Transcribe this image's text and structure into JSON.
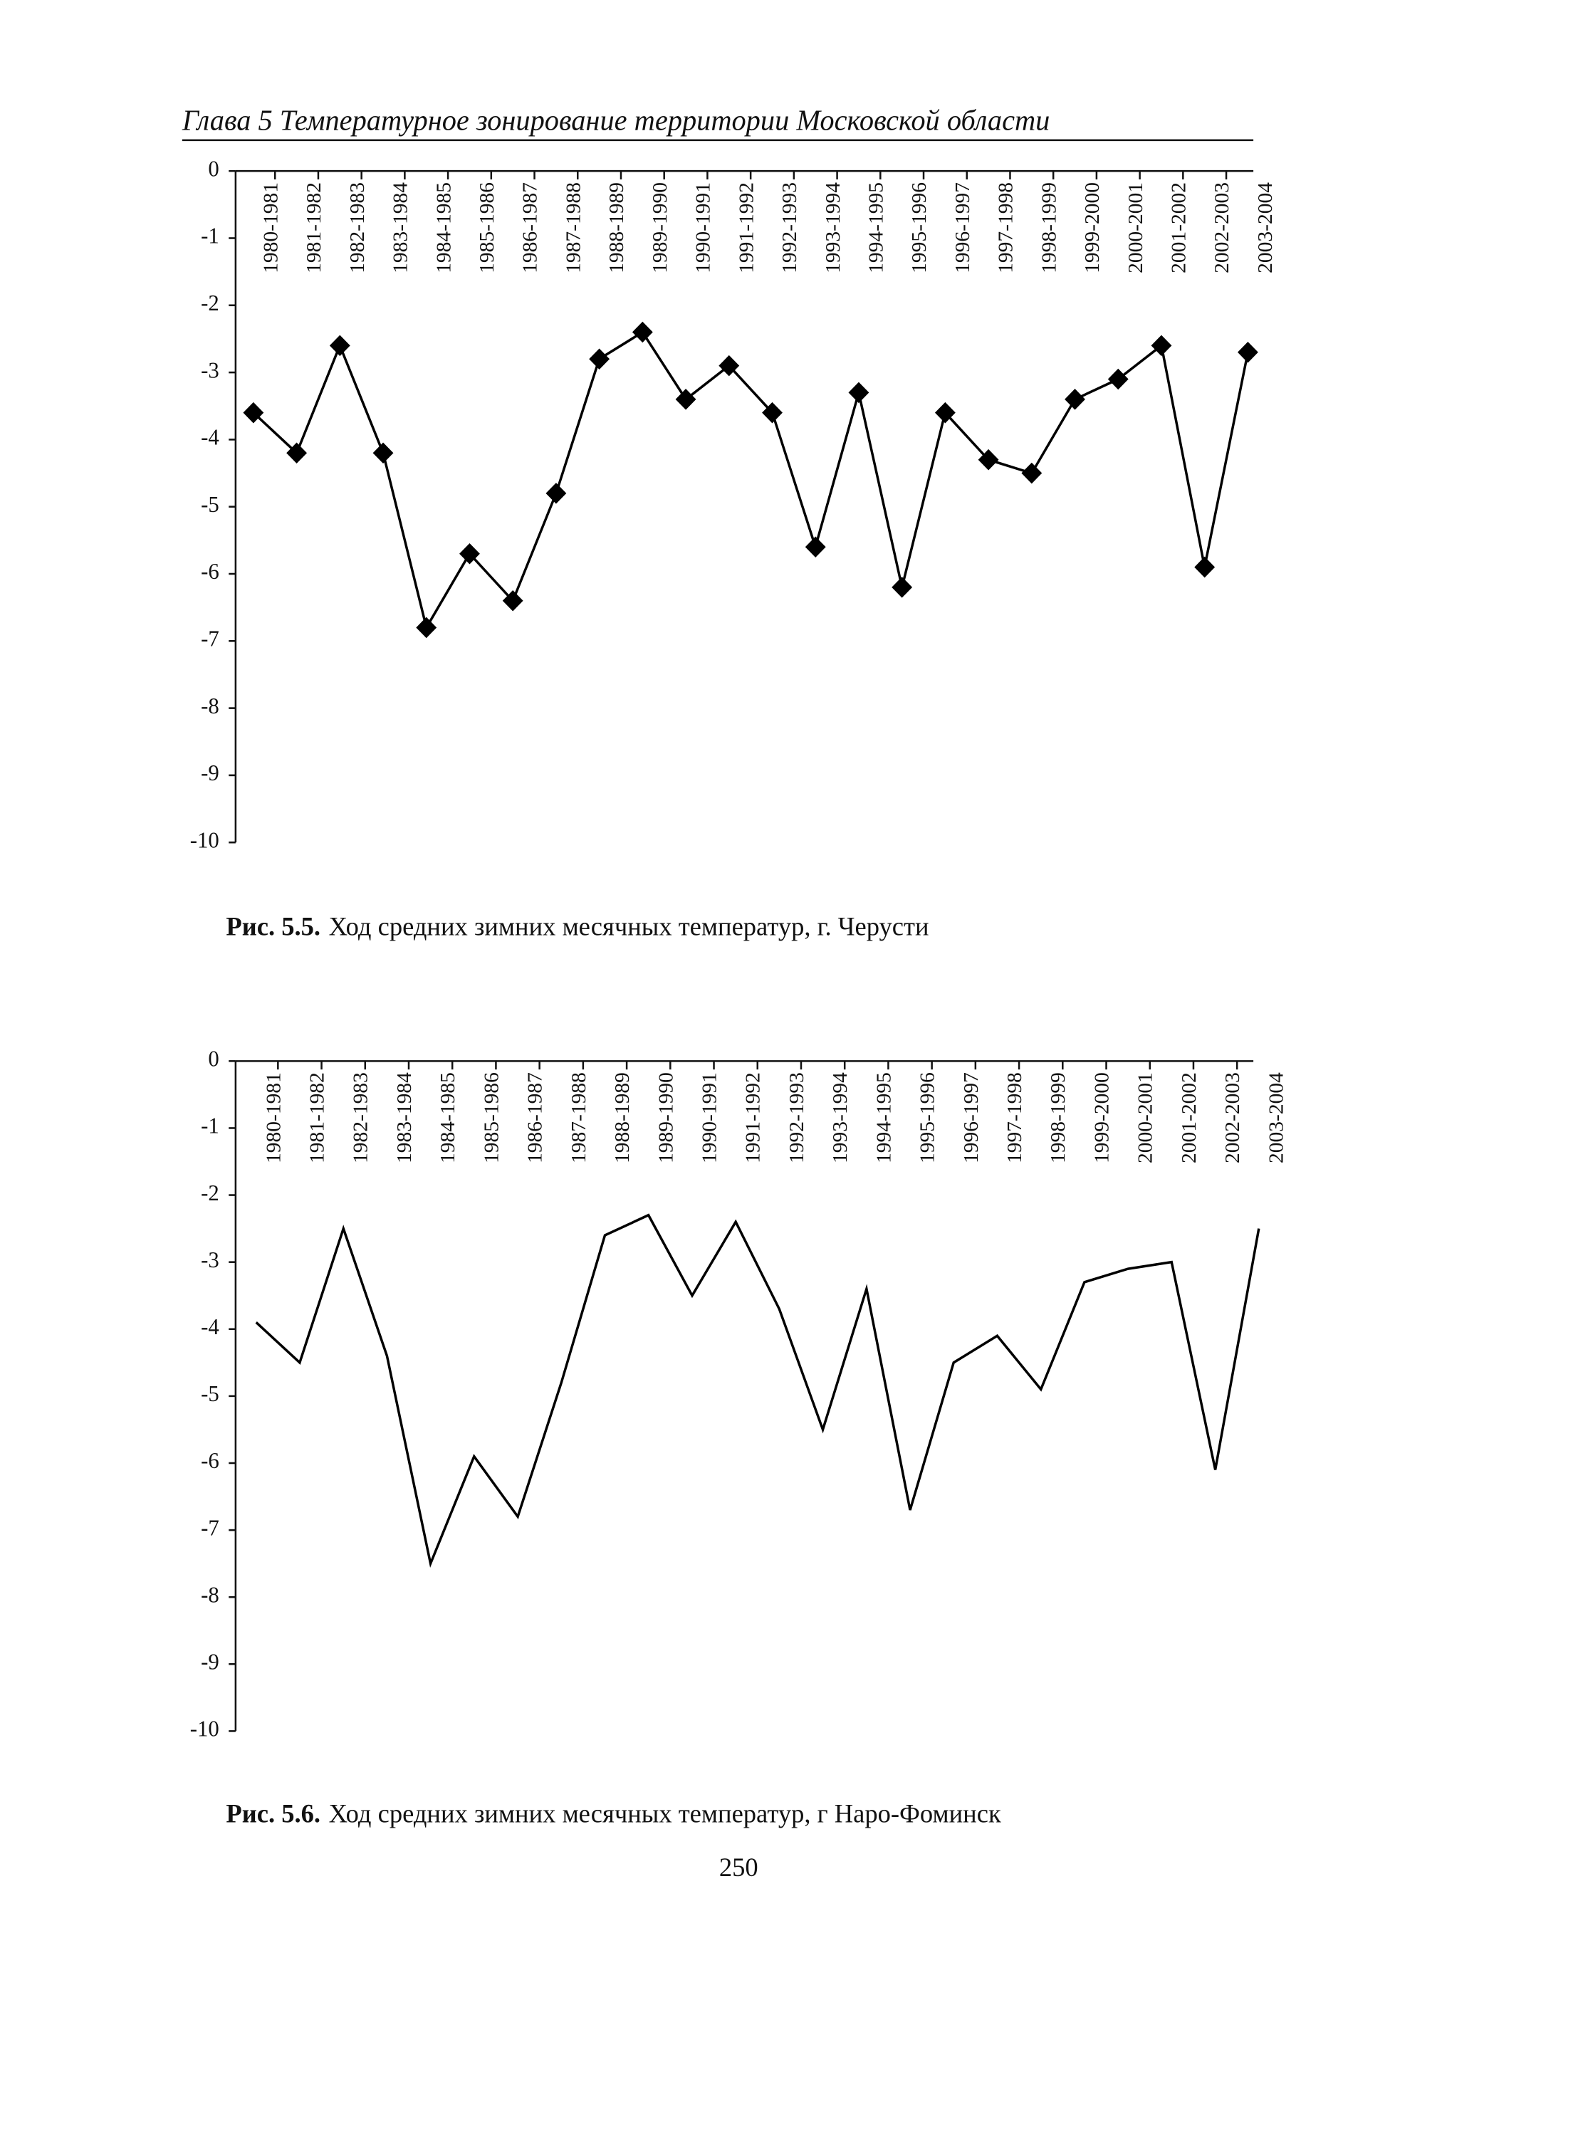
{
  "header": "Глава 5  Температурное зонирование территории Московской области",
  "page_number": "250",
  "chart_data": [
    {
      "type": "line",
      "marker": "diamond",
      "color": "#000000",
      "caption_number": "Рис. 5.5.",
      "caption": "Ход средних зимних месячных температур, г. Черусти",
      "categories": [
        "1980-1981",
        "1981-1982",
        "1982-1983",
        "1983-1984",
        "1984-1985",
        "1985-1986",
        "1986-1987",
        "1987-1988",
        "1988-1989",
        "1989-1990",
        "1990-1991",
        "1991-1992",
        "1992-1993",
        "1993-1994",
        "1994-1995",
        "1995-1996",
        "1996-1997",
        "1997-1998",
        "1998-1999",
        "1999-2000",
        "2000-2001",
        "2001-2002",
        "2002-2003",
        "2003-2004"
      ],
      "values": [
        -3.6,
        -4.2,
        -2.6,
        -4.2,
        -6.8,
        -5.7,
        -6.4,
        -4.8,
        -2.8,
        -2.4,
        -3.4,
        -2.9,
        -3.6,
        -5.6,
        -3.3,
        -6.2,
        -3.6,
        -4.3,
        -4.5,
        -3.4,
        -3.1,
        -2.6,
        -5.9,
        -2.7
      ],
      "ylim": [
        -10,
        0
      ],
      "yticks": [
        0,
        -1,
        -2,
        -3,
        -4,
        -5,
        -6,
        -7,
        -8,
        -9,
        -10
      ]
    },
    {
      "type": "line",
      "marker": "none",
      "color": "#000000",
      "caption_number": "Рис. 5.6.",
      "caption": "Ход средних зимних месячных температур, г  Наро-Фоминск",
      "categories": [
        "1980-1981",
        "1981-1982",
        "1982-1983",
        "1983-1984",
        "1984-1985",
        "1985-1986",
        "1986-1987",
        "1987-1988",
        "1988-1989",
        "1989-1990",
        "1990-1991",
        "1991-1992",
        "1992-1993",
        "1993-1994",
        "1994-1995",
        "1995-1996",
        "1996-1997",
        "1997-1998",
        "1998-1999",
        "1999-2000",
        "2000-2001",
        "2001-2002",
        "2002-2003",
        "2003-2004"
      ],
      "values": [
        -3.9,
        -4.5,
        -2.5,
        -4.4,
        -7.5,
        -5.9,
        -6.8,
        -4.8,
        -2.6,
        -2.3,
        -3.5,
        -2.4,
        -3.7,
        -5.5,
        -3.4,
        -6.7,
        -4.5,
        -4.1,
        -4.9,
        -3.3,
        -3.1,
        -3.0,
        -6.1,
        -2.5
      ],
      "ylim": [
        -10,
        0
      ],
      "yticks": [
        0,
        -1,
        -2,
        -3,
        -4,
        -5,
        -6,
        -7,
        -8,
        -9,
        -10
      ]
    }
  ]
}
